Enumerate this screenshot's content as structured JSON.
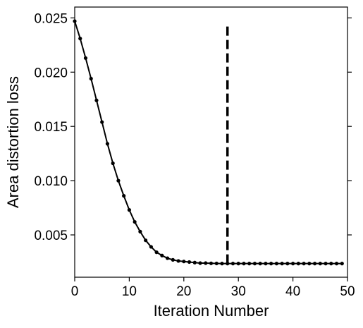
{
  "chart_data": {
    "type": "line",
    "xlabel": "Iteration Number",
    "ylabel": "Area distortion loss",
    "xlim": [
      0,
      50
    ],
    "ylim": [
      0.0011,
      0.026
    ],
    "xticks": [
      0,
      10,
      20,
      30,
      40,
      50
    ],
    "xtick_labels": [
      "0",
      "10",
      "20",
      "30",
      "40",
      "50"
    ],
    "yticks": [
      0.005,
      0.01,
      0.015,
      0.02,
      0.025
    ],
    "ytick_labels": [
      "0.005",
      "0.010",
      "0.015",
      "0.020",
      "0.025"
    ],
    "grid": false,
    "ticks_on_right": true,
    "series": [
      {
        "color": "#000000",
        "marker": "circle",
        "x": [
          0,
          1,
          2,
          3,
          4,
          5,
          6,
          7,
          8,
          9,
          10,
          11,
          12,
          13,
          14,
          15,
          16,
          17,
          18,
          19,
          20,
          21,
          22,
          23,
          24,
          25,
          26,
          27,
          28,
          29,
          30,
          31,
          32,
          33,
          34,
          35,
          36,
          37,
          38,
          39,
          40,
          41,
          42,
          43,
          44,
          45,
          46,
          47,
          48,
          49
        ],
        "y": [
          0.0247,
          0.0231,
          0.0213,
          0.0194,
          0.0174,
          0.0154,
          0.0134,
          0.0116,
          0.01,
          0.0086,
          0.0073,
          0.0062,
          0.0053,
          0.0045,
          0.0039,
          0.0034,
          0.0031,
          0.00285,
          0.0027,
          0.0026,
          0.00255,
          0.0025,
          0.00245,
          0.0024,
          0.0024,
          0.00238,
          0.00237,
          0.00236,
          0.00236,
          0.00236,
          0.00236,
          0.00236,
          0.00236,
          0.00236,
          0.00236,
          0.00236,
          0.00236,
          0.00236,
          0.00236,
          0.00236,
          0.00236,
          0.00236,
          0.00236,
          0.00236,
          0.00236,
          0.00236,
          0.00236,
          0.00236,
          0.00236,
          0.00236
        ]
      }
    ],
    "vline": {
      "x": 28,
      "y_from": 0.00236,
      "y_to": 0.0245,
      "style": "dashed",
      "color": "#000000"
    }
  }
}
